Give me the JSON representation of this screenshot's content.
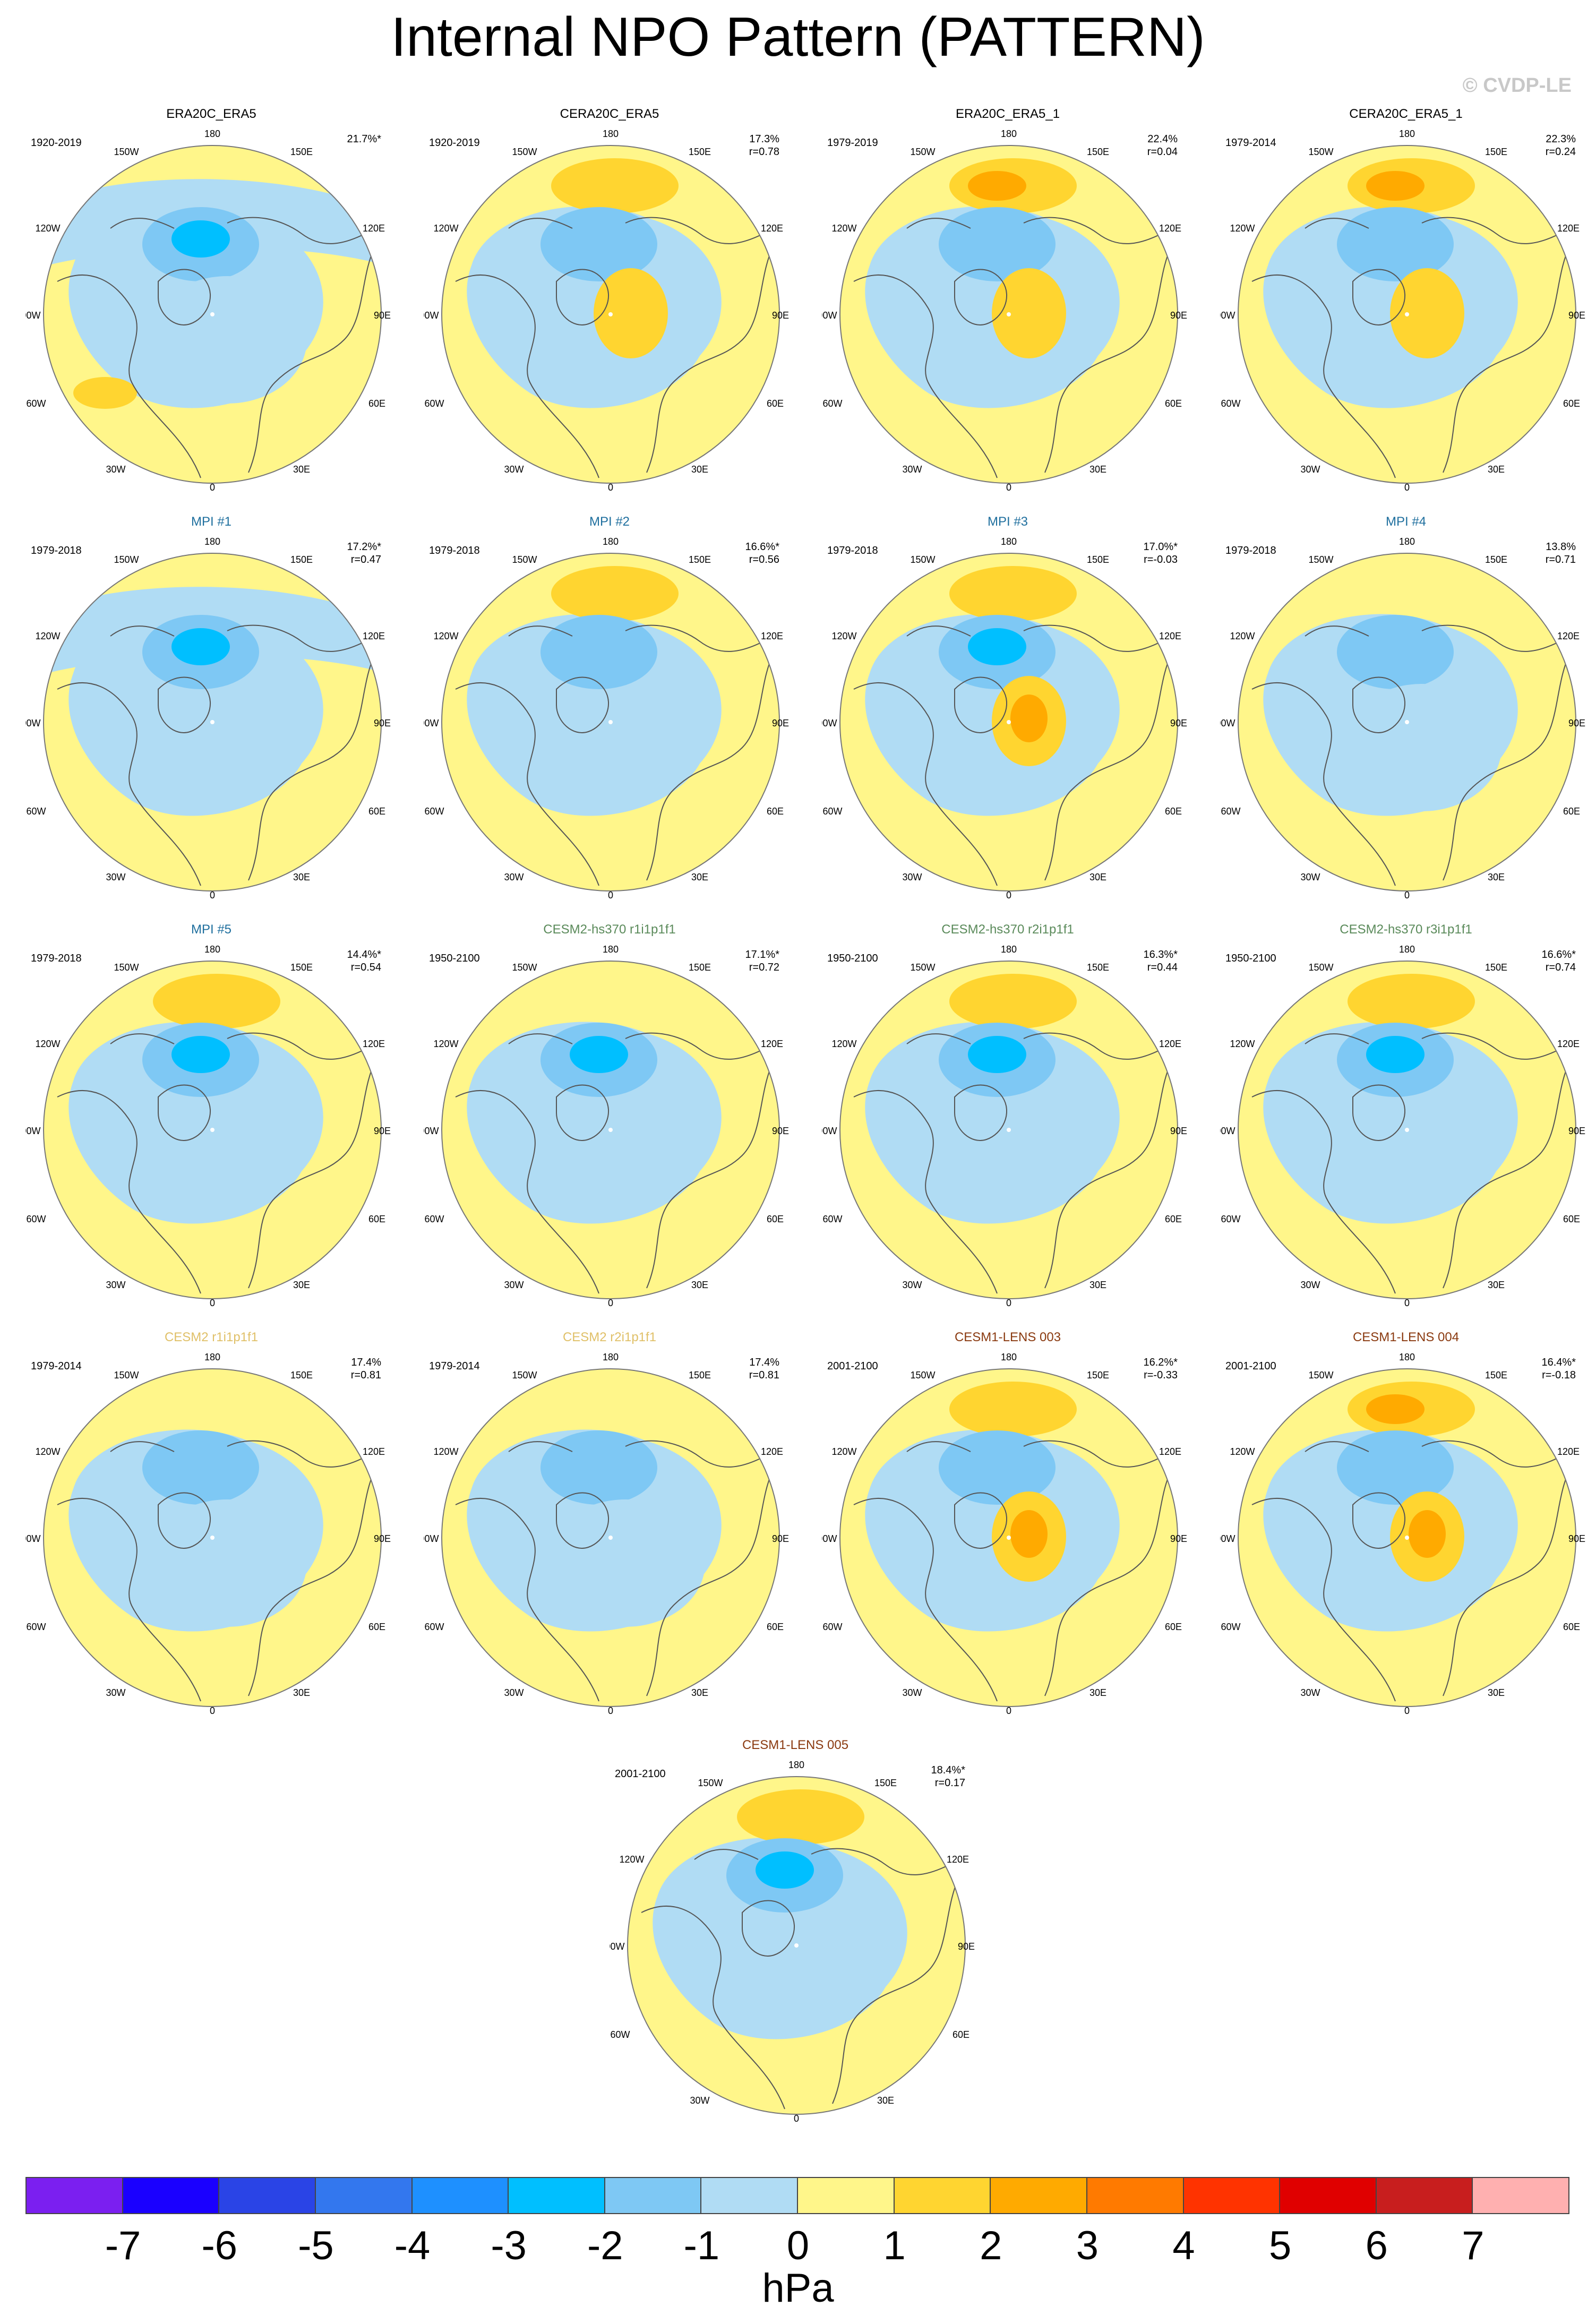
{
  "title": "Internal NPO Pattern (PATTERN)",
  "credit": "© CVDP-LE",
  "colors": {
    "levels": [
      "#7b1ff0",
      "#1a00ff",
      "#2a44e6",
      "#3377ee",
      "#1e90ff",
      "#00bfff",
      "#7ec8f4",
      "#b0dcf4",
      "#fff68a",
      "#ffd530",
      "#ffaa00",
      "#ff7a00",
      "#ff3300",
      "#e00000",
      "#c81e1e",
      "#ffb0b0"
    ],
    "panel_title_obs": "#000000",
    "panel_title_mpi": "#1f6f9e",
    "panel_title_cesm2hs": "#5a8a5a",
    "panel_title_cesm2": "#e0c068",
    "panel_title_cesm1": "#8a3a10"
  },
  "map_labels": {
    "lon_180": "180",
    "lon_150w": "150W",
    "lon_150e": "150E",
    "lon_120w": "120W",
    "lon_120e": "120E",
    "lon_90w": "90W",
    "lon_90e": "90E",
    "lon_60w": "60W",
    "lon_60e": "60E",
    "lon_30w": "30W",
    "lon_30e": "30E",
    "lon_0": "0"
  },
  "panels": [
    {
      "title": "ERA20C_ERA5",
      "title_color": "obs",
      "period": "1920-2019",
      "pct": "21.7%*",
      "r": "",
      "pacific": "low",
      "center": "strong-low",
      "europe": "low",
      "atlantic": "high"
    },
    {
      "title": "CERA20C_ERA5",
      "title_color": "obs",
      "period": "1920-2019",
      "pct": "17.3%",
      "r": "r=0.78",
      "pacific": "high",
      "center": "low",
      "europe": "high",
      "atlantic": "none"
    },
    {
      "title": "ERA20C_ERA5_1",
      "title_color": "obs",
      "period": "1979-2019",
      "pct": "22.4%",
      "r": "r=0.04",
      "pacific": "strong-high",
      "center": "low",
      "europe": "high",
      "atlantic": "none"
    },
    {
      "title": "CERA20C_ERA5_1",
      "title_color": "obs",
      "period": "1979-2014",
      "pct": "22.3%",
      "r": "r=0.24",
      "pacific": "strong-high",
      "center": "low",
      "europe": "high",
      "atlantic": "none"
    },
    {
      "title": "MPI #1",
      "title_color": "mpi",
      "period": "1979-2018",
      "pct": "17.2%*",
      "r": "r=0.47",
      "pacific": "low",
      "center": "strong-low",
      "europe": "none",
      "atlantic": "none"
    },
    {
      "title": "MPI #2",
      "title_color": "mpi",
      "period": "1979-2018",
      "pct": "16.6%*",
      "r": "r=0.56",
      "pacific": "high",
      "center": "low",
      "europe": "none",
      "atlantic": "none"
    },
    {
      "title": "MPI #3",
      "title_color": "mpi",
      "period": "1979-2018",
      "pct": "17.0%*",
      "r": "r=-0.03",
      "pacific": "high",
      "center": "strong-low",
      "europe": "strong-high",
      "atlantic": "none"
    },
    {
      "title": "MPI #4",
      "title_color": "mpi",
      "period": "1979-2018",
      "pct": "13.8%",
      "r": "r=0.71",
      "pacific": "none",
      "center": "low",
      "europe": "low",
      "atlantic": "none"
    },
    {
      "title": "MPI #5",
      "title_color": "mpi",
      "period": "1979-2018",
      "pct": "14.4%*",
      "r": "r=0.54",
      "pacific": "high",
      "center": "strong-low",
      "europe": "none",
      "atlantic": "none"
    },
    {
      "title": "CESM2-hs370 r1i1p1f1",
      "title_color": "cesm2hs",
      "period": "1950-2100",
      "pct": "17.1%*",
      "r": "r=0.72",
      "pacific": "none",
      "center": "strong-low",
      "europe": "none",
      "atlantic": "none"
    },
    {
      "title": "CESM2-hs370 r2i1p1f1",
      "title_color": "cesm2hs",
      "period": "1950-2100",
      "pct": "16.3%*",
      "r": "r=0.44",
      "pacific": "high",
      "center": "strong-low",
      "europe": "none",
      "atlantic": "none"
    },
    {
      "title": "CESM2-hs370 r3i1p1f1",
      "title_color": "cesm2hs",
      "period": "1950-2100",
      "pct": "16.6%*",
      "r": "r=0.74",
      "pacific": "high",
      "center": "strong-low",
      "europe": "none",
      "atlantic": "none"
    },
    {
      "title": "CESM2 r1i1p1f1",
      "title_color": "cesm2",
      "period": "1979-2014",
      "pct": "17.4%",
      "r": "r=0.81",
      "pacific": "none",
      "center": "low",
      "europe": "low",
      "atlantic": "none"
    },
    {
      "title": "CESM2 r2i1p1f1",
      "title_color": "cesm2",
      "period": "1979-2014",
      "pct": "17.4%",
      "r": "r=0.81",
      "pacific": "none",
      "center": "low",
      "europe": "low",
      "atlantic": "none"
    },
    {
      "title": "CESM1-LENS 003",
      "title_color": "cesm1",
      "period": "2001-2100",
      "pct": "16.2%*",
      "r": "r=-0.33",
      "pacific": "high",
      "center": "low",
      "europe": "strong-high",
      "atlantic": "none"
    },
    {
      "title": "CESM1-LENS 004",
      "title_color": "cesm1",
      "period": "2001-2100",
      "pct": "16.4%*",
      "r": "r=-0.18",
      "pacific": "strong-high",
      "center": "low",
      "europe": "strong-high",
      "atlantic": "none"
    },
    {
      "title": "CESM1-LENS 005",
      "title_color": "cesm1",
      "period": "2001-2100",
      "pct": "18.4%*",
      "r": "r=0.17",
      "pacific": "high",
      "center": "strong-low",
      "europe": "none",
      "atlantic": "none"
    }
  ],
  "colorbar": {
    "ticks": [
      "-7",
      "-6",
      "-5",
      "-4",
      "-3",
      "-2",
      "-1",
      "0",
      "1",
      "2",
      "3",
      "4",
      "5",
      "6",
      "7"
    ],
    "units": "hPa"
  }
}
